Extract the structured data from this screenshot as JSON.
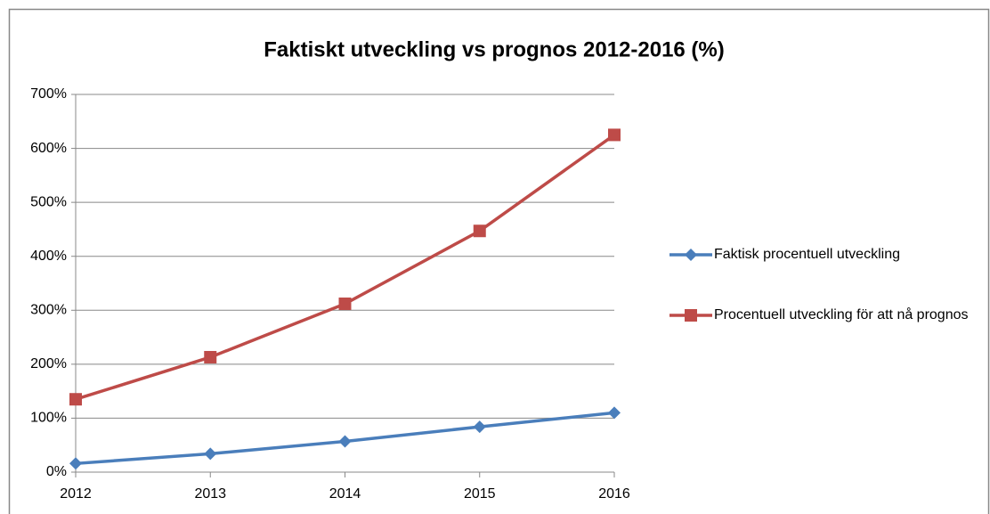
{
  "chart_data": {
    "type": "line",
    "title": "Faktiskt utveckling vs prognos 2012-2016 (%)",
    "categories": [
      "2012",
      "2013",
      "2014",
      "2015",
      "2016"
    ],
    "series": [
      {
        "name": "Faktisk procentuell utveckling",
        "color": "#4a7ebb",
        "marker": "diamond",
        "values": [
          16,
          34,
          57,
          84,
          110
        ]
      },
      {
        "name": "Procentuell utveckling för att nå prognos",
        "color": "#be4b48",
        "marker": "square",
        "values": [
          135,
          213,
          312,
          447,
          625
        ]
      }
    ],
    "ylim": [
      0,
      700
    ],
    "yticks": [
      {
        "value": 0,
        "label": "0%"
      },
      {
        "value": 100,
        "label": "100%"
      },
      {
        "value": 200,
        "label": "200%"
      },
      {
        "value": 300,
        "label": "300%"
      },
      {
        "value": 400,
        "label": "400%"
      },
      {
        "value": 500,
        "label": "500%"
      },
      {
        "value": 600,
        "label": "600%"
      },
      {
        "value": 700,
        "label": "700%"
      }
    ],
    "grid": true,
    "legend": "right"
  }
}
